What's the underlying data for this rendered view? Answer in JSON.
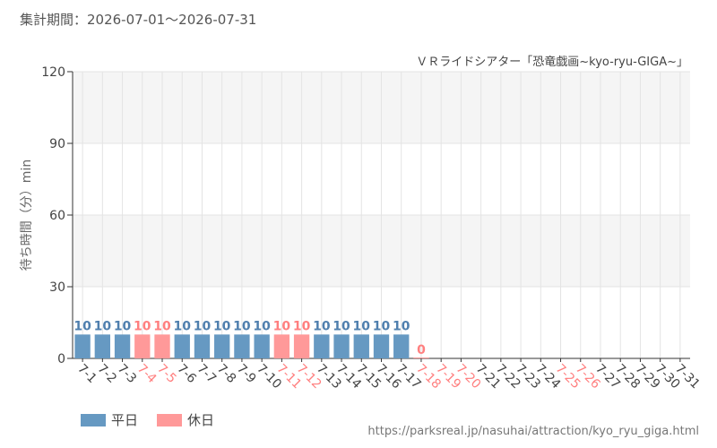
{
  "header": {
    "period_label": "集計期間：2026-07-01〜2026-07-31"
  },
  "chart_data": {
    "type": "bar",
    "title": "ＶＲライドシアター「恐竜戯画~kyo-ryu-GIGA~」",
    "ylabel": "待ち時間（分）min",
    "ylim": [
      0,
      120
    ],
    "yticks": [
      0,
      30,
      60,
      90,
      120
    ],
    "grid": true,
    "legend_position": "bottom-left",
    "categories": [
      "7-1",
      "7-2",
      "7-3",
      "7-4",
      "7-5",
      "7-6",
      "7-7",
      "7-8",
      "7-9",
      "7-10",
      "7-11",
      "7-12",
      "7-13",
      "7-14",
      "7-15",
      "7-16",
      "7-17",
      "7-18",
      "7-19",
      "7-20",
      "7-21",
      "7-22",
      "7-23",
      "7-24",
      "7-25",
      "7-26",
      "7-27",
      "7-28",
      "7-29",
      "7-30",
      "7-31"
    ],
    "values": [
      10,
      10,
      10,
      10,
      10,
      10,
      10,
      10,
      10,
      10,
      10,
      10,
      10,
      10,
      10,
      10,
      10,
      0,
      null,
      null,
      null,
      null,
      null,
      null,
      null,
      null,
      null,
      null,
      null,
      null,
      null
    ],
    "day_type": [
      "weekday",
      "weekday",
      "weekday",
      "holiday",
      "holiday",
      "weekday",
      "weekday",
      "weekday",
      "weekday",
      "weekday",
      "holiday",
      "holiday",
      "weekday",
      "weekday",
      "weekday",
      "weekday",
      "weekday",
      "holiday",
      "holiday",
      "holiday",
      "weekday",
      "weekday",
      "weekday",
      "weekday",
      "holiday",
      "holiday",
      "weekday",
      "weekday",
      "weekday",
      "weekday",
      "weekday"
    ],
    "series": [
      {
        "name": "平日",
        "key": "weekday",
        "color": "#6699c2"
      },
      {
        "name": "休日",
        "key": "holiday",
        "color": "#ff9999"
      }
    ]
  },
  "colors": {
    "weekday_label": "#4f7fae",
    "holiday_label": "#ff7f7f",
    "band": "#f5f5f5",
    "grid": "#e4e4e4",
    "axis": "#333333"
  },
  "footer": {
    "source_url": "https://parksreal.jp/nasuhai/attraction/kyo_ryu_giga.html"
  }
}
